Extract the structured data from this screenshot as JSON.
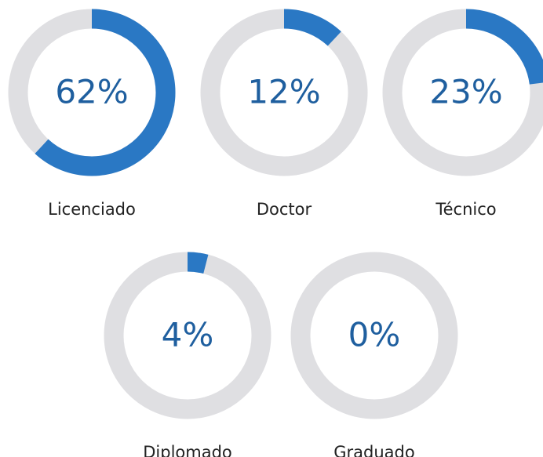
{
  "chart_data": [
    {
      "type": "donut",
      "categories": [
        "Licenciado"
      ],
      "values": [
        62
      ],
      "value_labels": [
        "62%"
      ],
      "color": "#2a78c4",
      "track_color": "#dfdfe2"
    },
    {
      "type": "donut",
      "categories": [
        "Doctor"
      ],
      "values": [
        12
      ],
      "value_labels": [
        "12%"
      ],
      "color": "#2a78c4",
      "track_color": "#dfdfe2"
    },
    {
      "type": "donut",
      "categories": [
        "Técnico"
      ],
      "values": [
        23
      ],
      "value_labels": [
        "23%"
      ],
      "color": "#2a78c4",
      "track_color": "#dfdfe2"
    },
    {
      "type": "donut",
      "categories": [
        "Diplomado"
      ],
      "values": [
        4
      ],
      "value_labels": [
        "4%"
      ],
      "color": "#2a78c4",
      "track_color": "#dfdfe2"
    },
    {
      "type": "donut",
      "categories": [
        "Graduado"
      ],
      "values": [
        0
      ],
      "value_labels": [
        "0%"
      ],
      "color": "#2a78c4",
      "track_color": "#dfdfe2"
    }
  ]
}
